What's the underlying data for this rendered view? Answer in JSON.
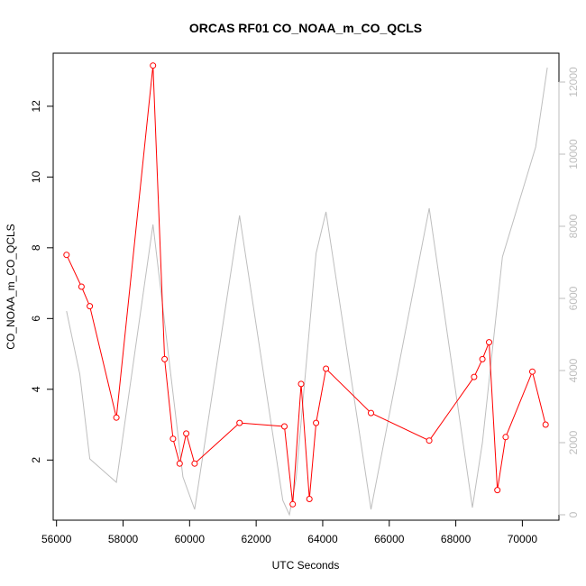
{
  "chart_data": {
    "type": "line",
    "title": "ORCAS RF01 CO_NOAA_m_CO_QCLS",
    "xlabel": "UTC Seconds",
    "ylabel": "CO_NOAA_m_CO_QCLS",
    "xlim": [
      55900,
      71100
    ],
    "ylim": [
      0.3,
      13.5
    ],
    "y2lim": [
      -150,
      12800
    ],
    "x_ticks": [
      56000,
      58000,
      60000,
      62000,
      64000,
      66000,
      68000,
      70000
    ],
    "x_tick_labels": [
      "56000",
      "58000",
      "60000",
      "62000",
      "64000",
      "66000",
      "68000",
      "70000"
    ],
    "y_ticks": [
      2,
      4,
      6,
      8,
      10,
      12
    ],
    "y_tick_labels": [
      "2",
      "4",
      "6",
      "8",
      "10",
      "12"
    ],
    "y2_ticks": [
      0,
      2000,
      4000,
      6000,
      8000,
      10000,
      12000
    ],
    "y2_tick_labels": [
      "0",
      "2000",
      "4000",
      "6000",
      "8000",
      "10000",
      "12000"
    ],
    "grid": false,
    "series": [
      {
        "axis": "left",
        "style": "line+points",
        "color": "#ff0000",
        "x": [
          56300,
          56750,
          57000,
          57800,
          58900,
          59250,
          59500,
          59700,
          59900,
          60150,
          61500,
          62850,
          63100,
          63350,
          63600,
          63800,
          64100,
          65450,
          67200,
          68550,
          68800,
          69000,
          69250,
          69500,
          70300,
          70700
        ],
        "y": [
          7.8,
          6.9,
          6.35,
          3.2,
          13.15,
          4.85,
          2.6,
          1.9,
          2.75,
          1.9,
          3.05,
          2.95,
          0.75,
          4.15,
          0.9,
          3.05,
          4.58,
          3.33,
          2.55,
          4.35,
          4.85,
          5.33,
          1.15,
          2.65,
          4.5,
          3.0
        ]
      },
      {
        "axis": "right",
        "style": "line",
        "color": "#bebebe",
        "x": [
          56300,
          56700,
          57000,
          57800,
          58900,
          59800,
          60150,
          61500,
          62800,
          63000,
          63200,
          63800,
          64100,
          65450,
          67200,
          68500,
          68800,
          69400,
          70400,
          70750
        ],
        "y": [
          5650,
          3900,
          1550,
          900,
          8050,
          1050,
          150,
          8300,
          400,
          0,
          1000,
          7250,
          8400,
          150,
          8500,
          200,
          2000,
          7150,
          10200,
          12400
        ]
      }
    ]
  }
}
